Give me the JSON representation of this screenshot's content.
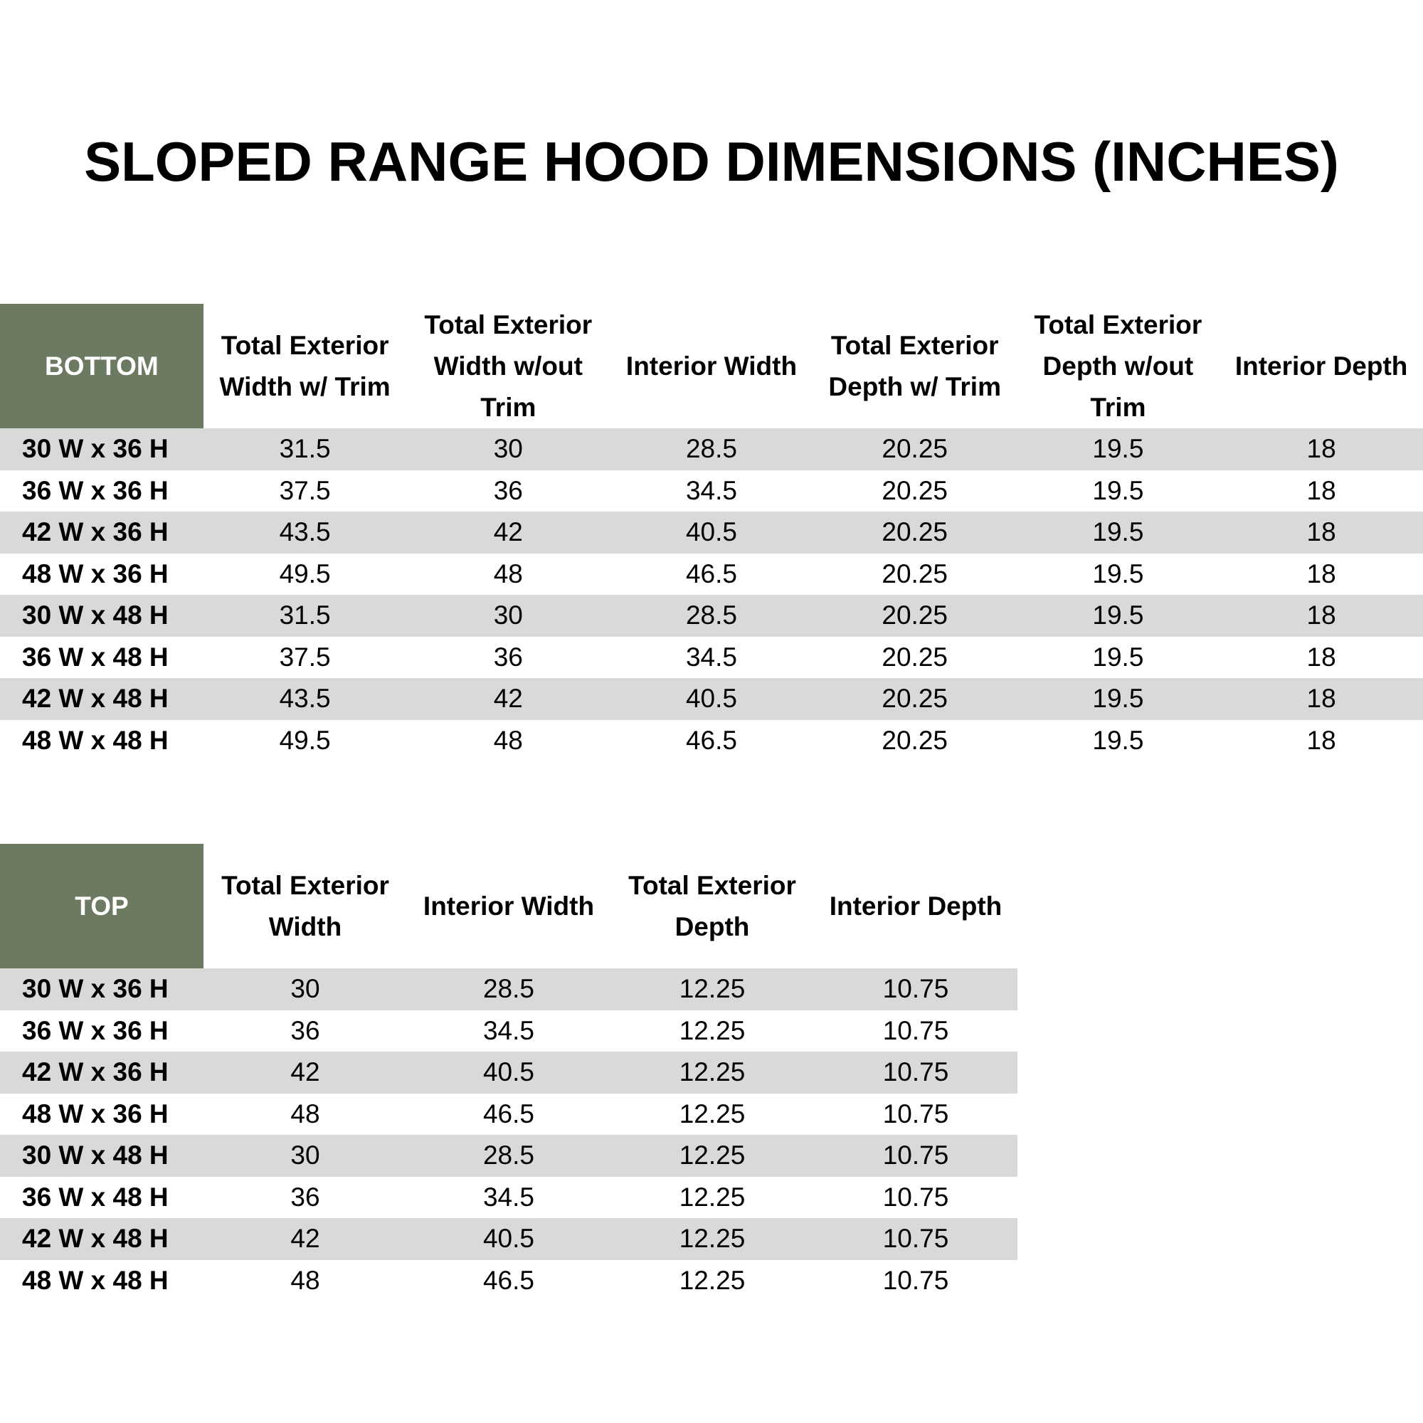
{
  "title": "SLOPED RANGE HOOD DIMENSIONS (INCHES)",
  "tables": [
    {
      "corner": "BOTTOM",
      "headers": [
        "Total Exterior Width w/ Trim",
        "Total Exterior Width w/out Trim",
        "Interior Width",
        "Total Exterior Depth w/ Trim",
        "Total Exterior Depth w/out Trim",
        "Interior Depth"
      ],
      "rows": [
        [
          "30 W x 36 H",
          31.5,
          30,
          28.5,
          20.25,
          19.5,
          18
        ],
        [
          "36 W x 36 H",
          37.5,
          36,
          34.5,
          20.25,
          19.5,
          18
        ],
        [
          "42 W x 36 H",
          43.5,
          42,
          40.5,
          20.25,
          19.5,
          18
        ],
        [
          "48 W x 36 H",
          49.5,
          48,
          46.5,
          20.25,
          19.5,
          18
        ],
        [
          "30 W x 48 H",
          31.5,
          30,
          28.5,
          20.25,
          19.5,
          18
        ],
        [
          "36 W x 48 H",
          37.5,
          36,
          34.5,
          20.25,
          19.5,
          18
        ],
        [
          "42 W x 48 H",
          43.5,
          42,
          40.5,
          20.25,
          19.5,
          18
        ],
        [
          "48 W x 48 H",
          49.5,
          48,
          46.5,
          20.25,
          19.5,
          18
        ]
      ]
    },
    {
      "corner": "TOP",
      "headers": [
        "Total Exterior Width",
        "Interior Width",
        "Total Exterior Depth",
        "Interior Depth"
      ],
      "rows": [
        [
          "30 W x 36 H",
          30,
          28.5,
          12.25,
          10.75
        ],
        [
          "36 W x 36 H",
          36,
          34.5,
          12.25,
          10.75
        ],
        [
          "42 W x 36 H",
          42,
          40.5,
          12.25,
          10.75
        ],
        [
          "48 W x 36 H",
          48,
          46.5,
          12.25,
          10.75
        ],
        [
          "30 W x 48 H",
          30,
          28.5,
          12.25,
          10.75
        ],
        [
          "36 W x 48 H",
          36,
          34.5,
          12.25,
          10.75
        ],
        [
          "42 W x 48 H",
          42,
          40.5,
          12.25,
          10.75
        ],
        [
          "48 W x 48 H",
          48,
          46.5,
          12.25,
          10.75
        ]
      ]
    }
  ]
}
